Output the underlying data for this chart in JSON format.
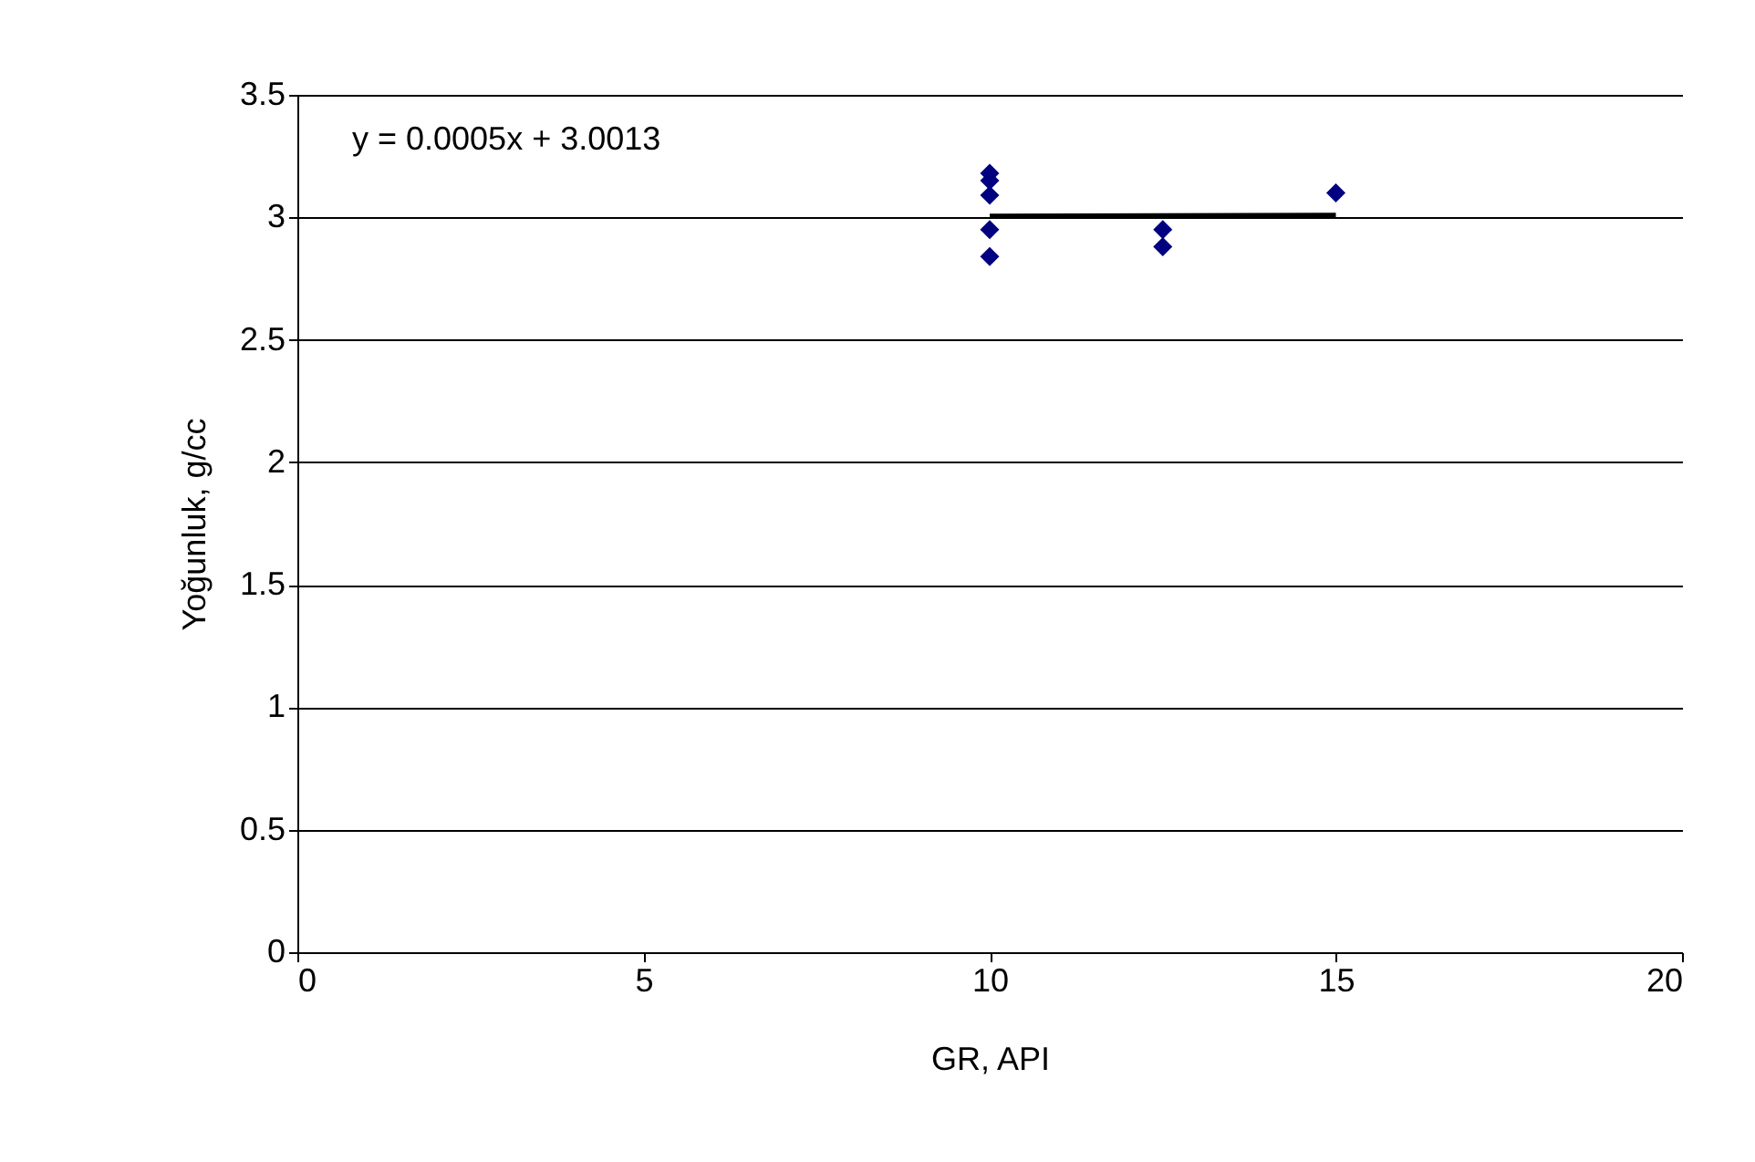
{
  "chart_data": {
    "type": "scatter",
    "xlabel": "GR, API",
    "ylabel": "Yoğunluk, g/cc",
    "annotations": [
      "y = 0.0005x + 3.0013"
    ],
    "series": [
      {
        "color": "#000080",
        "marker": "diamond",
        "x": [
          10,
          10,
          10,
          10,
          10,
          12.5,
          12.5,
          15
        ],
        "values": [
          3.18,
          3.15,
          3.09,
          2.95,
          2.84,
          2.95,
          2.88,
          3.1
        ]
      },
      {
        "type": "line",
        "color": "#000000",
        "marker": "none",
        "x": [
          10,
          15
        ],
        "values": [
          3.006,
          3.009
        ]
      }
    ],
    "xlim": [
      0,
      20
    ],
    "xticks": [
      0,
      5,
      10,
      15,
      20
    ],
    "ylim": [
      0,
      3.5
    ],
    "yticks": [
      0,
      0.5,
      1,
      1.5,
      2,
      2.5,
      3,
      3.5
    ],
    "grid": "y"
  }
}
